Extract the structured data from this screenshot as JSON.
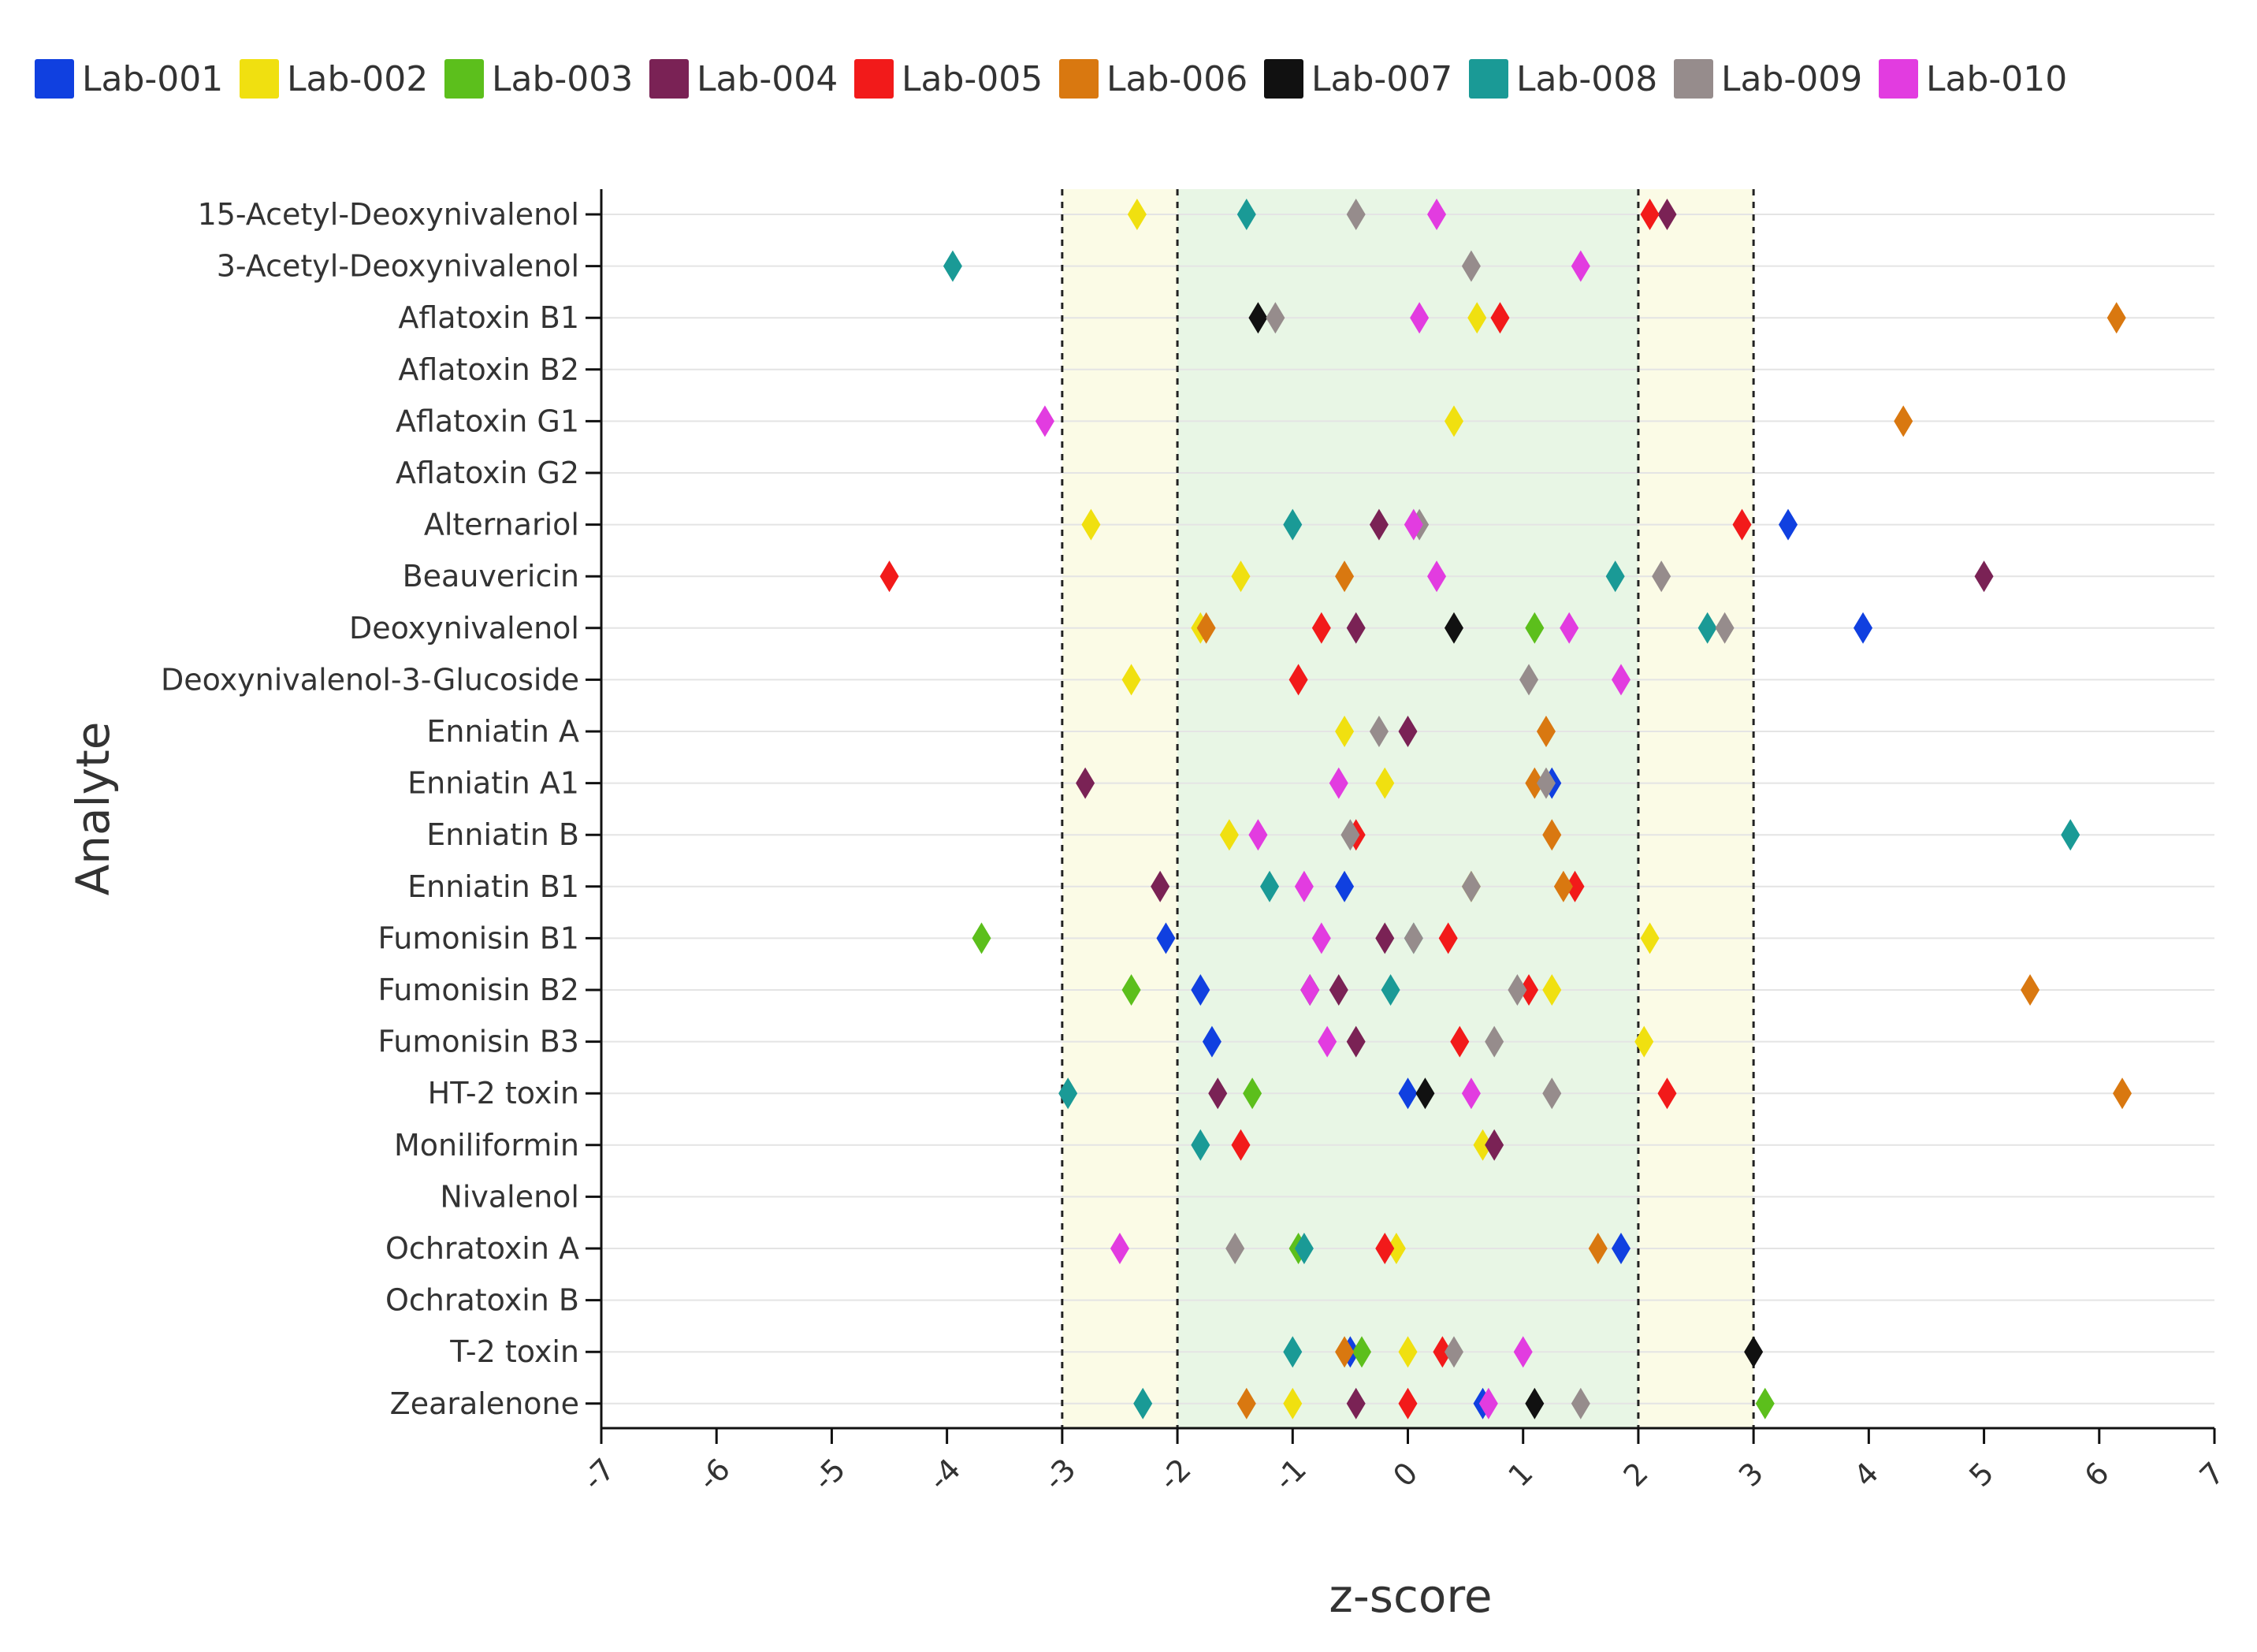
{
  "chart_data": {
    "type": "scatter",
    "xlabel": "z-score",
    "ylabel": "Analyte",
    "xlim": [
      -7,
      7
    ],
    "xticks": [
      "-7",
      "-6",
      "-5",
      "-4",
      "-3",
      "-2",
      "-1",
      "0",
      "1",
      "2",
      "3",
      "4",
      "5",
      "6",
      "7"
    ],
    "bands": [
      {
        "from": -3,
        "to": 3,
        "color": "#fbfbe6"
      },
      {
        "from": -2,
        "to": 2,
        "color": "#e8f6e5"
      }
    ],
    "reference_lines": [
      -3,
      -2,
      2,
      3
    ],
    "categories": [
      "15-Acetyl-Deoxynivalenol",
      "3-Acetyl-Deoxynivalenol",
      "Aflatoxin B1",
      "Aflatoxin B2",
      "Aflatoxin G1",
      "Aflatoxin G2",
      "Alternariol",
      "Beauvericin",
      "Deoxynivalenol",
      "Deoxynivalenol-3-Glucoside",
      "Enniatin A",
      "Enniatin A1",
      "Enniatin B",
      "Enniatin B1",
      "Fumonisin B1",
      "Fumonisin B2",
      "Fumonisin B3",
      "HT-2 toxin",
      "Moniliformin",
      "Nivalenol",
      "Ochratoxin A",
      "Ochratoxin B",
      "T-2 toxin",
      "Zearalenone"
    ],
    "series": [
      {
        "name": "Lab-001",
        "color": "#1040e0",
        "values": [
          null,
          null,
          null,
          null,
          null,
          null,
          3.3,
          null,
          3.95,
          null,
          null,
          1.25,
          null,
          -0.55,
          -2.1,
          -1.8,
          -1.7,
          0,
          null,
          null,
          1.85,
          null,
          -0.5,
          0.65
        ]
      },
      {
        "name": "Lab-002",
        "color": "#f0e010",
        "values": [
          -2.35,
          null,
          0.6,
          null,
          0.4,
          null,
          -2.75,
          -1.45,
          -1.8,
          -2.4,
          -0.55,
          -0.2,
          -1.55,
          0.55,
          2.1,
          1.25,
          2.05,
          null,
          0.65,
          null,
          -0.1,
          null,
          0,
          -1
        ]
      },
      {
        "name": "Lab-003",
        "color": "#5cbf1c",
        "values": [
          null,
          null,
          null,
          null,
          null,
          null,
          null,
          null,
          1.1,
          null,
          null,
          null,
          null,
          null,
          -3.7,
          -2.4,
          null,
          -1.35,
          null,
          null,
          -0.95,
          null,
          -0.4,
          3.1
        ]
      },
      {
        "name": "Lab-004",
        "color": "#7a2255",
        "values": [
          2.25,
          null,
          null,
          null,
          null,
          null,
          -0.25,
          5,
          -0.45,
          null,
          0,
          -2.8,
          null,
          -2.15,
          -0.2,
          -0.6,
          -0.45,
          -1.65,
          0.75,
          null,
          null,
          null,
          null,
          -0.45
        ]
      },
      {
        "name": "Lab-005",
        "color": "#f21a1a",
        "values": [
          2.1,
          null,
          0.8,
          null,
          null,
          null,
          2.9,
          -4.5,
          -0.75,
          -0.95,
          null,
          null,
          -0.45,
          1.45,
          0.35,
          1.05,
          0.45,
          2.25,
          -1.45,
          null,
          -0.2,
          null,
          0.3,
          0
        ]
      },
      {
        "name": "Lab-006",
        "color": "#d97810",
        "values": [
          null,
          null,
          6.15,
          null,
          4.3,
          null,
          null,
          -0.55,
          -1.75,
          null,
          1.2,
          1.1,
          1.25,
          1.35,
          null,
          5.4,
          null,
          6.2,
          null,
          null,
          1.65,
          null,
          -0.55,
          -1.4
        ]
      },
      {
        "name": "Lab-007",
        "color": "#111111",
        "values": [
          null,
          null,
          -1.3,
          null,
          null,
          null,
          null,
          null,
          0.4,
          null,
          null,
          null,
          null,
          null,
          null,
          -0.85,
          null,
          0.15,
          null,
          null,
          null,
          null,
          3,
          1.1
        ]
      },
      {
        "name": "Lab-008",
        "color": "#1a9a96",
        "values": [
          -1.4,
          -3.95,
          null,
          null,
          null,
          null,
          -1,
          1.8,
          2.6,
          null,
          null,
          null,
          5.75,
          -1.2,
          0.05,
          -0.15,
          null,
          -2.95,
          -1.8,
          null,
          -0.9,
          null,
          -1,
          -2.3
        ]
      },
      {
        "name": "Lab-009",
        "color": "#968c8c",
        "values": [
          -0.45,
          0.55,
          -1.15,
          null,
          null,
          null,
          0.1,
          2.2,
          2.75,
          1.05,
          -0.25,
          1.2,
          -0.5,
          0.55,
          0.05,
          0.95,
          0.75,
          1.25,
          null,
          null,
          -1.5,
          null,
          0.4,
          1.5
        ]
      },
      {
        "name": "Lab-010",
        "color": "#e23ce0",
        "values": [
          0.25,
          1.5,
          0.1,
          null,
          -3.15,
          null,
          0.05,
          0.25,
          1.4,
          1.85,
          null,
          -0.6,
          -1.3,
          -0.9,
          -0.75,
          -0.85,
          -0.7,
          0.55,
          null,
          null,
          -2.5,
          null,
          1,
          0.7
        ]
      }
    ]
  }
}
